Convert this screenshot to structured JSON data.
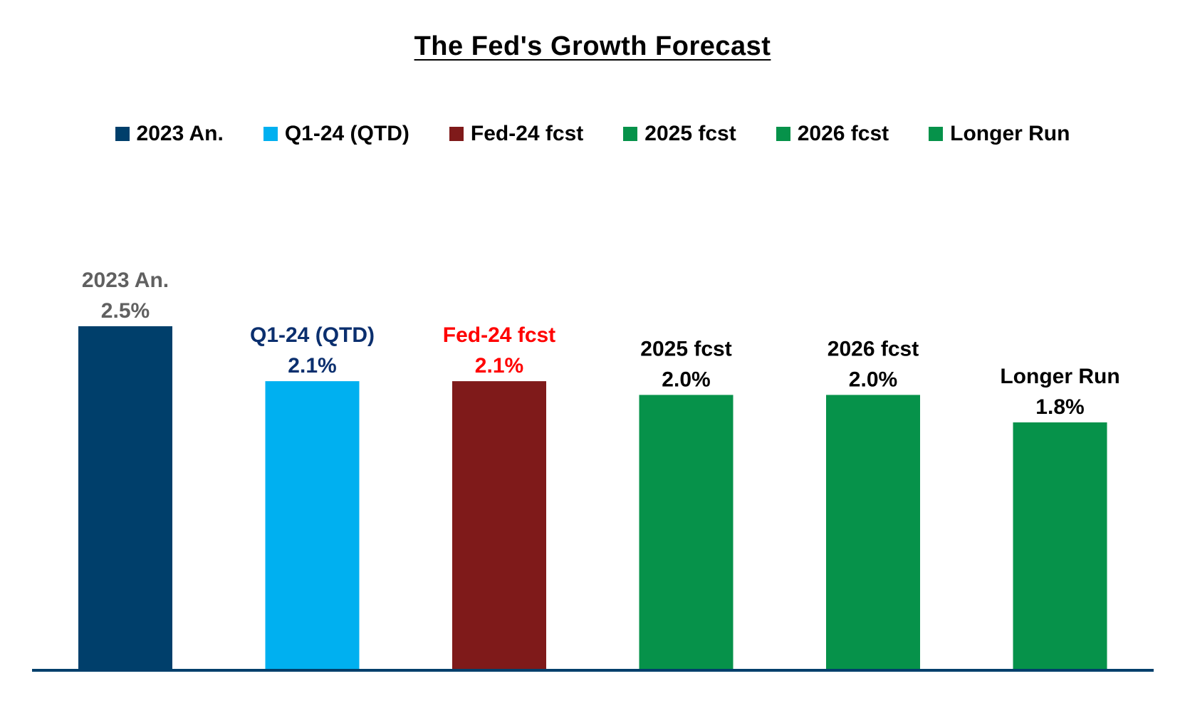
{
  "chart_data": {
    "type": "bar",
    "title": "The Fed's Growth Forecast",
    "xlabel": "",
    "ylabel": "",
    "categories": [
      "2023 An.",
      "Q1-24 (QTD)",
      "Fed-24 fcst",
      "2025 fcst",
      "2026 fcst",
      "Longer Run"
    ],
    "values": [
      2.5,
      2.1,
      2.1,
      2.0,
      2.0,
      1.8
    ],
    "value_labels": [
      "2.5%",
      "2.1%",
      "2.1%",
      "2.0%",
      "2.0%",
      "1.8%"
    ],
    "ylim": [
      0,
      3.3
    ],
    "grid": false,
    "legend_position": "top",
    "bar_colors": [
      "#003f6b",
      "#00b0f0",
      "#7f1a1a",
      "#06924a",
      "#06924a",
      "#06924a"
    ],
    "label_colors": [
      "#606060",
      "#0b2f6e",
      "#ff0000",
      "#000000",
      "#000000",
      "#000000"
    ],
    "legend": [
      {
        "label": "2023 An.",
        "color": "#003f6b"
      },
      {
        "label": "Q1-24 (QTD)",
        "color": "#00b0f0"
      },
      {
        "label": "Fed-24 fcst",
        "color": "#7f1a1a"
      },
      {
        "label": "2025 fcst",
        "color": "#06924a"
      },
      {
        "label": "2026 fcst",
        "color": "#06924a"
      },
      {
        "label": "Longer Run",
        "color": "#06924a"
      }
    ],
    "axis_color": "#003f6b"
  }
}
